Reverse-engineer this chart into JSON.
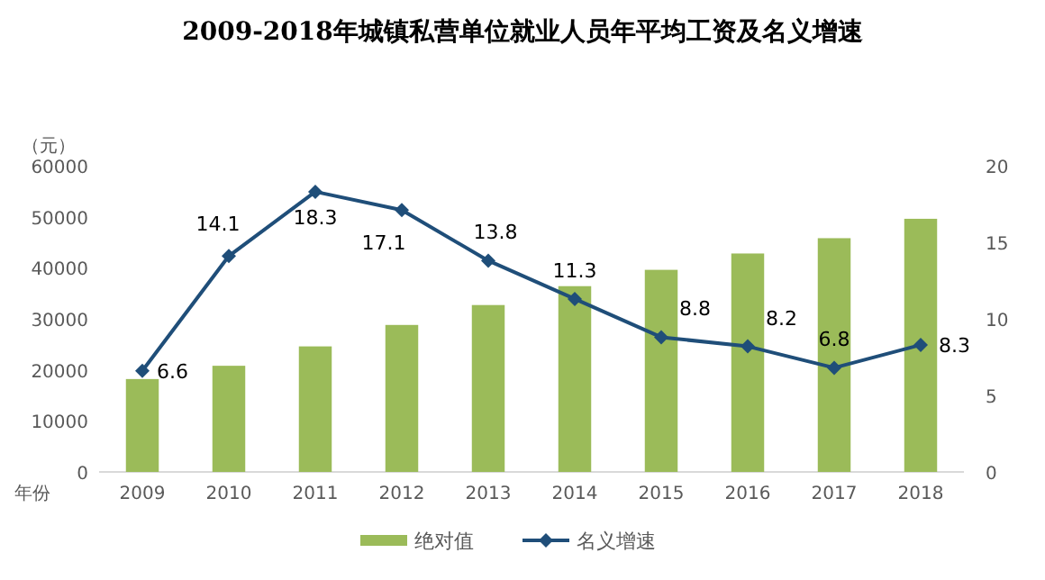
{
  "chart_data": {
    "type": "bar",
    "title": "2009-2018年城镇私营单位就业人员年平均工资及名义增速",
    "ylabel": "（元）",
    "xlabel": "年份",
    "categories": [
      "2009",
      "2010",
      "2011",
      "2012",
      "2013",
      "2014",
      "2015",
      "2016",
      "2017",
      "2018"
    ],
    "series": [
      {
        "name": "绝对值",
        "color": "#9bbb59",
        "values": [
          18200,
          20800,
          24600,
          28800,
          32700,
          36400,
          39600,
          42800,
          45800,
          49600
        ]
      },
      {
        "name": "名义增速",
        "type": "line",
        "axis": "y2",
        "color": "#1f4e79",
        "marker": "diamond",
        "data_labels": true,
        "values": [
          6.6,
          14.1,
          18.3,
          17.1,
          13.8,
          11.3,
          8.8,
          8.2,
          6.8,
          8.3
        ]
      }
    ],
    "ylim": [
      0,
      60000
    ],
    "yticks": [
      0,
      10000,
      20000,
      30000,
      40000,
      50000,
      60000
    ],
    "y2lim": [
      0,
      20
    ],
    "y2ticks": [
      0,
      5,
      10,
      15,
      20
    ],
    "legend": "bottom",
    "grid": false
  }
}
